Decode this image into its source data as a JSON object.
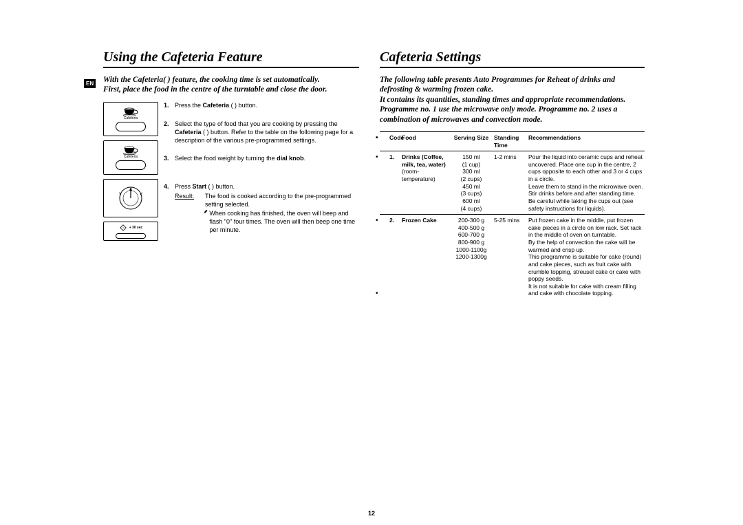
{
  "page_number": "12",
  "lang_tag": "EN",
  "left": {
    "title": "Using the Cafeteria Feature",
    "intro_line1": "With the Cafeteria(  ) feature, the cooking time is set automatically.",
    "intro_line2": "First, place the food in the centre of the turntable and close the door.",
    "buttons": {
      "cafeteria_label": "Cafeteria",
      "start_label": "+ 30 sec"
    },
    "steps": [
      {
        "num": "1.",
        "html": "Press the <b>Cafeteria</b> (  ) button."
      },
      {
        "num": "2.",
        "html": "Select the type of food that you are cooking by pressing the <b>Cafeteria</b> (  ) button. Refer to the table on the following page for a description of the various pre-programmed settings."
      },
      {
        "num": "3.",
        "html": "Select the food weight by turning the <b>dial knob</b>."
      },
      {
        "num": "4.",
        "html": "Press <b>Start</b> (  ) button.",
        "result_label": "Result:",
        "result_body": "The food is cooked according to the pre-programmed setting selected.",
        "result_bullet": "When cooking has finished, the oven will beep and flash \"0\" four times. The oven will then beep one time per minute."
      }
    ]
  },
  "right": {
    "title": "Cafeteria Settings",
    "intro_p1": "The following table presents Auto Programmes for Reheat of drinks and defrosting & warming frozen cake.",
    "intro_p2": "It contains its quantities, standing times and appropriate recommendations.",
    "intro_p3": "Programme no. 1 use the microwave only mode. Programme no. 2 uses a combination of microwaves and convection mode.",
    "table": {
      "headers": {
        "code": "Code",
        "food": "Food",
        "serving": "Serving Size",
        "standing": "Standing Time",
        "rec": "Recommendations"
      },
      "rows": [
        {
          "code": "1.",
          "food_bold": "Drinks (Coffee, milk, tea, water)",
          "food_plain": "(room-temperature)",
          "serving": "150 ml\n(1 cup)\n300 ml\n(2 cups)\n450 ml\n(3 cups)\n600 ml\n(4 cups)",
          "standing": "1-2 mins",
          "rec": "Pour the liquid into ceramic cups and reheat uncovered. Place one cup in the centre, 2 cups opposite to each other and 3 or 4 cups in a circle.\nLeave them to stand in the microwave oven.\nStir drinks before and after standing time.\nBe careful while taking the cups out (see safety instructions for liquids)."
        },
        {
          "code": "2.",
          "food_bold": "Frozen Cake",
          "food_plain": "",
          "serving": "200-300 g\n400-500 g\n600-700 g\n800-900 g\n1000-1100g\n1200-1300g",
          "standing": "5-25 mins",
          "rec": "Put frozen cake in the middle, put frozen cake pieces in a circle on low rack. Set rack in the middle of oven on turntable.\nBy the help of convection the cake will be warmed and crisp up.\nThis programme is suitable for cake (round) and cake pieces, such as fruit cake with crumble topping, streusel cake or cake with poppy seeds.\nIt is not suitable for cake with cream filling and cake with chocolate topping."
        }
      ]
    }
  }
}
